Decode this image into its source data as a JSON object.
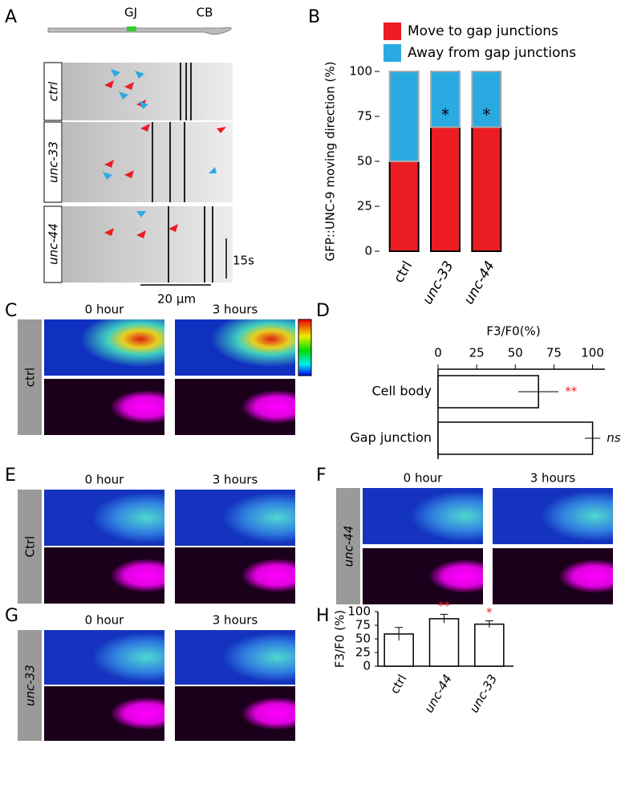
{
  "panels": {
    "A": {
      "label": "A",
      "schematic": [
        "GJ",
        "CB"
      ],
      "rows": [
        "ctrl",
        "unc-33",
        "unc-44"
      ],
      "time_scale": "15s",
      "length_scale": "20 µm"
    },
    "B": {
      "label": "B"
    },
    "C": {
      "label": "C",
      "times": [
        "0 hour",
        "3 hours"
      ],
      "condition": "ctrl"
    },
    "D": {
      "label": "D"
    },
    "E": {
      "label": "E",
      "times": [
        "0 hour",
        "3 hours"
      ],
      "condition": "Ctrl"
    },
    "F": {
      "label": "F",
      "times": [
        "0 hour",
        "3 hours"
      ],
      "condition": "unc-44"
    },
    "G": {
      "label": "G",
      "times": [
        "0 hour",
        "3 hours"
      ],
      "condition": "unc-33"
    },
    "H": {
      "label": "H"
    }
  },
  "chart_data": [
    {
      "type": "stacked_bar",
      "categories": [
        "ctrl",
        "unc-33",
        "unc-44"
      ],
      "series": [
        {
          "name": "Move to gap junctions",
          "color": "#ec1c24",
          "values": [
            50,
            69,
            69
          ]
        },
        {
          "name": "Away from gap junctions",
          "color": "#29abe2",
          "values": [
            50,
            31,
            31
          ]
        }
      ],
      "ylabel": "GFP::UNC-9 moving direction (%)",
      "ylim": [
        0,
        100
      ],
      "yticks": [
        0,
        25,
        50,
        75,
        100
      ],
      "significance": [
        null,
        "*",
        "*"
      ]
    },
    {
      "type": "hbar",
      "title": "F3/F0(%)",
      "categories": [
        "Cell body",
        "Gap junction"
      ],
      "values": [
        65,
        100
      ],
      "errors": [
        13,
        5
      ],
      "significance": [
        "**",
        "ns"
      ],
      "significance_colors": [
        "#ec1c24",
        "#000000"
      ],
      "xlim": [
        0,
        108
      ],
      "xticks": [
        0,
        25,
        50,
        75,
        100
      ]
    },
    {
      "type": "bar",
      "categories": [
        "ctrl",
        "unc-44",
        "unc-33"
      ],
      "values": [
        59,
        87,
        77
      ],
      "errors": [
        12,
        8,
        6
      ],
      "color": "#ffffff",
      "ylabel": "F3/F0 (%)",
      "ylim": [
        0,
        100
      ],
      "yticks": [
        0,
        25,
        50,
        75,
        100
      ],
      "significance": [
        null,
        "**",
        "*"
      ],
      "significance_color": "#ec1c24"
    }
  ]
}
